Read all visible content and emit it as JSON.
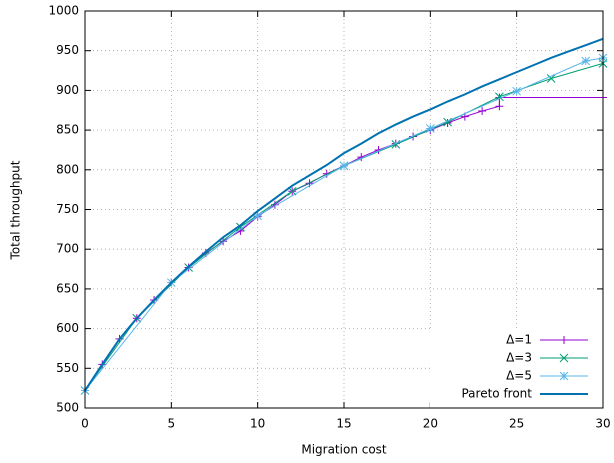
{
  "chart_data": {
    "type": "line",
    "x_label": "Migration cost",
    "y_label": "Total throughput",
    "xlim": [
      0,
      30
    ],
    "ylim": [
      500,
      1000
    ],
    "xticks": [
      0,
      5,
      10,
      15,
      20,
      25,
      30
    ],
    "yticks": [
      500,
      550,
      600,
      650,
      700,
      750,
      800,
      850,
      900,
      950,
      1000
    ],
    "grid": true,
    "legend": "lower right",
    "series": [
      {
        "name": "Δ=1",
        "color": "#9400d3",
        "marker": "plus",
        "x": [
          0,
          1,
          2,
          3,
          4,
          5,
          6,
          7,
          8,
          9,
          10,
          11,
          12,
          13,
          14,
          15,
          16,
          17,
          18,
          19,
          20,
          21,
          22,
          23,
          24,
          24,
          30
        ],
        "values": [
          522,
          555,
          587,
          613,
          636,
          658,
          677,
          695,
          710,
          723,
          741,
          756,
          773,
          783,
          795,
          805,
          816,
          825,
          833,
          842,
          850,
          859,
          867,
          874,
          880,
          891,
          891
        ]
      },
      {
        "name": "Δ=3",
        "color": "#009e73",
        "marker": "cross",
        "x": [
          0,
          3,
          6,
          9,
          12,
          15,
          18,
          21,
          24,
          27,
          30
        ],
        "values": [
          522,
          613,
          677,
          728,
          773,
          805,
          832,
          860,
          892,
          915,
          934
        ]
      },
      {
        "name": "Δ=5",
        "color": "#56b4e9",
        "marker": "star",
        "x": [
          0,
          5,
          10,
          15,
          20,
          25,
          29,
          30
        ],
        "values": [
          522,
          658,
          742,
          805,
          852,
          899,
          937,
          941
        ]
      },
      {
        "name": "Pareto front",
        "color": "#0072b2",
        "marker": null,
        "width": 2,
        "x": [
          0,
          1,
          2,
          3,
          4,
          5,
          6,
          7,
          8,
          9,
          10,
          11,
          12,
          13,
          14,
          15,
          16,
          17,
          18,
          19,
          20,
          21,
          22,
          23,
          24,
          25,
          26,
          27,
          28,
          29,
          30
        ],
        "values": [
          522,
          555,
          587,
          613,
          636,
          658,
          678,
          697,
          715,
          730,
          748,
          764,
          780,
          793,
          806,
          821,
          833,
          846,
          857,
          867,
          876,
          886,
          895,
          905,
          914,
          923,
          932,
          941,
          949,
          957,
          965
        ]
      }
    ]
  }
}
